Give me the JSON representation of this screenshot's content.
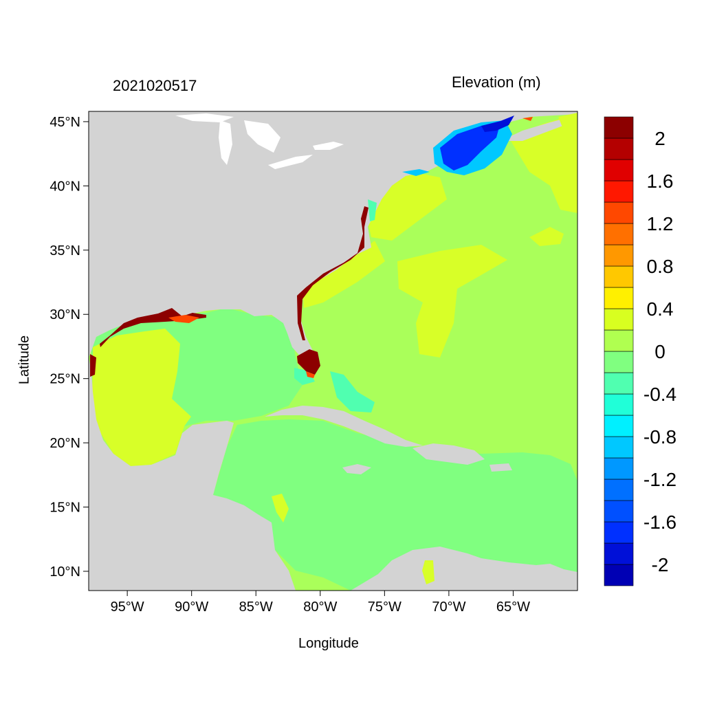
{
  "header": {
    "timestamp": "2021020517",
    "variable": "Elevation (m)"
  },
  "axes": {
    "xlabel": "Longitude",
    "ylabel": "Latitude",
    "x_ticks": [
      {
        "lon": -95,
        "label": "95°W"
      },
      {
        "lon": -90,
        "label": "90°W"
      },
      {
        "lon": -85,
        "label": "85°W"
      },
      {
        "lon": -80,
        "label": "80°W"
      },
      {
        "lon": -75,
        "label": "75°W"
      },
      {
        "lon": -70,
        "label": "70°W"
      },
      {
        "lon": -65,
        "label": "65°W"
      }
    ],
    "y_ticks": [
      {
        "lat": 45,
        "label": "45°N"
      },
      {
        "lat": 40,
        "label": "40°N"
      },
      {
        "lat": 35,
        "label": "35°N"
      },
      {
        "lat": 30,
        "label": "30°N"
      },
      {
        "lat": 25,
        "label": "25°N"
      },
      {
        "lat": 20,
        "label": "20°N"
      },
      {
        "lat": 15,
        "label": "15°N"
      },
      {
        "lat": 10,
        "label": "10°N"
      }
    ],
    "lon_range": [
      -98,
      -60
    ],
    "lat_range": [
      8.5,
      45.8
    ]
  },
  "colorbar": {
    "colors": [
      "#0000b4",
      "#0010d8",
      "#0030ff",
      "#0050ff",
      "#0070ff",
      "#0098ff",
      "#00c8ff",
      "#00f0ff",
      "#20ffd8",
      "#50ffb0",
      "#80ff80",
      "#b0ff50",
      "#d8ff20",
      "#fff000",
      "#ffc800",
      "#ff9800",
      "#ff7000",
      "#ff4800",
      "#ff1800",
      "#e00000",
      "#b40000",
      "#8c0000"
    ],
    "labels": [
      {
        "value": 2,
        "text": "2"
      },
      {
        "value": 1.6,
        "text": "1.6"
      },
      {
        "value": 1.2,
        "text": "1.2"
      },
      {
        "value": 0.8,
        "text": "0.8"
      },
      {
        "value": 0.4,
        "text": "0.4"
      },
      {
        "value": 0,
        "text": "0"
      },
      {
        "value": -0.4,
        "text": "-0.4"
      },
      {
        "value": -0.8,
        "text": "-0.8"
      },
      {
        "value": -1.2,
        "text": "-1.2"
      },
      {
        "value": -1.6,
        "text": "-1.6"
      },
      {
        "value": -2,
        "text": "-2"
      }
    ]
  },
  "map_colors": {
    "land": "#d3d3d3",
    "lakes": "#ffffff",
    "atlantic": "#aaff5a",
    "caribbean": "#80ff80",
    "gulf_west": "#d8ff28",
    "positive_low": "#d8ff28",
    "surge_high": "#8c0000",
    "surge_mid": "#ff4800",
    "negative_deep": "#0030ff",
    "negative_mid": "#00c8ff",
    "negative_shallow": "#50ffb0"
  }
}
